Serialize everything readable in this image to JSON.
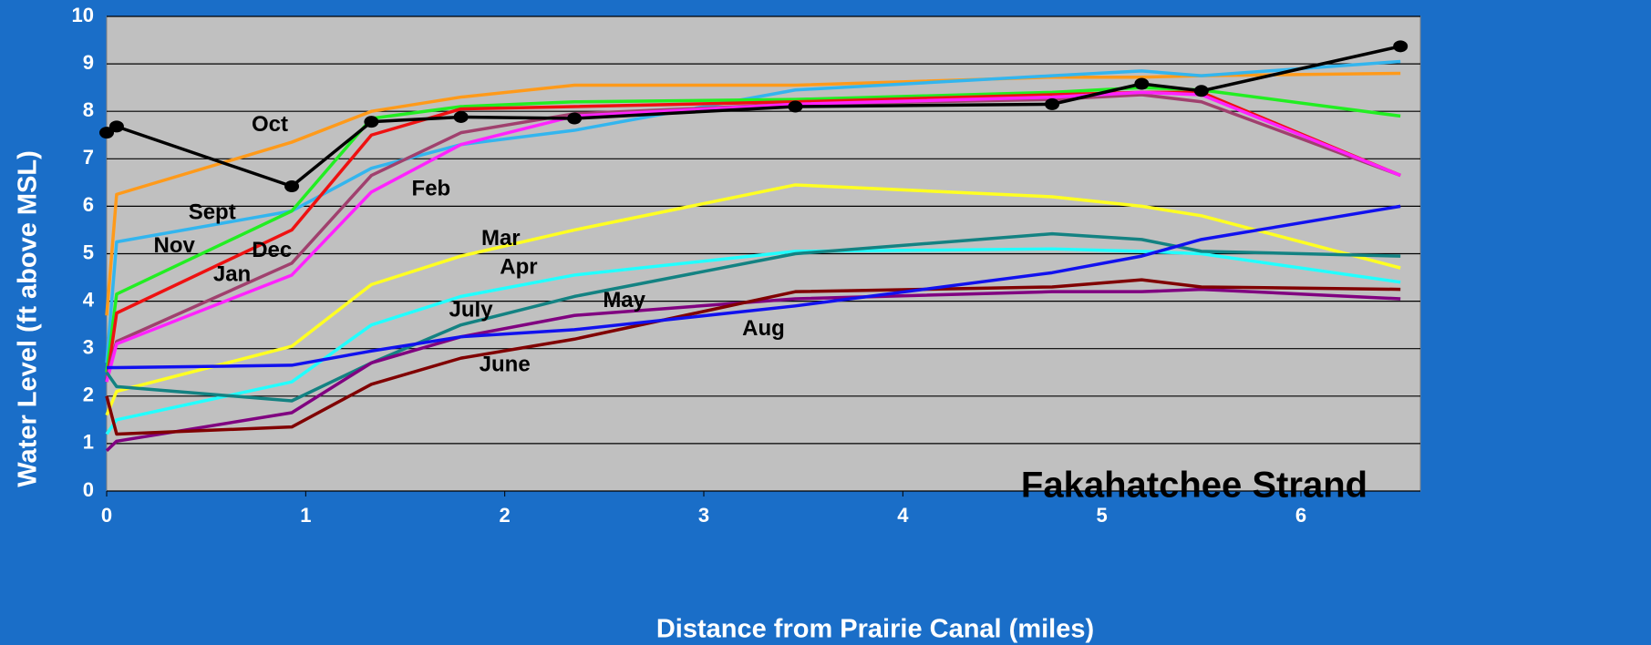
{
  "chart_data": {
    "type": "line",
    "annotation": "Fakahatchee Strand",
    "xlabel": "Distance from Prairie Canal (miles)",
    "ylabel": "Water Level (ft above MSL)",
    "x": [
      0,
      0.05,
      0.93,
      1.33,
      1.78,
      2.35,
      3.46,
      4.75,
      5.2,
      5.5,
      6.5
    ],
    "xlim": [
      0,
      6.6
    ],
    "xticks": [
      0,
      1,
      2,
      3,
      4,
      5,
      6
    ],
    "ylim": [
      0,
      10
    ],
    "yticks": [
      0,
      1,
      2,
      3,
      4,
      5,
      6,
      7,
      8,
      9,
      10
    ],
    "grid": true,
    "series": [
      {
        "name": "Oct",
        "color": "#ff9a1a",
        "values": [
          3.7,
          6.25,
          7.35,
          8.0,
          8.3,
          8.55,
          8.55,
          8.72,
          8.72,
          8.75,
          8.8
        ]
      },
      {
        "name": "Sept",
        "color": "#33b5ee",
        "values": [
          2.7,
          5.25,
          5.9,
          6.8,
          7.3,
          7.6,
          8.45,
          8.75,
          8.85,
          8.75,
          9.05
        ]
      },
      {
        "name": "Nov",
        "color": "#22ee22",
        "values": [
          2.5,
          4.15,
          5.9,
          7.85,
          8.1,
          8.2,
          8.25,
          8.4,
          8.5,
          8.45,
          7.9
        ]
      },
      {
        "name": "Dec",
        "color": "#ee1111",
        "values": [
          2.3,
          3.75,
          5.5,
          7.5,
          8.05,
          8.1,
          8.2,
          8.35,
          8.4,
          8.4,
          6.65
        ]
      },
      {
        "name": "Jan",
        "color": "#a0406e",
        "values": [
          2.4,
          3.15,
          4.8,
          6.65,
          7.55,
          7.95,
          8.15,
          8.25,
          8.35,
          8.2,
          6.65
        ]
      },
      {
        "name": "Feb",
        "color": "#ff22ff",
        "values": [
          2.3,
          3.1,
          4.55,
          6.3,
          7.3,
          7.9,
          8.15,
          8.3,
          8.4,
          8.35,
          6.65
        ]
      },
      {
        "name": "Mar",
        "color": "#ffff22",
        "values": [
          1.6,
          2.1,
          3.05,
          4.35,
          4.95,
          5.5,
          6.45,
          6.2,
          6.0,
          5.8,
          4.7
        ]
      },
      {
        "name": "Apr",
        "color": "#22ffff",
        "values": [
          1.2,
          1.5,
          2.3,
          3.5,
          4.1,
          4.55,
          5.05,
          5.1,
          5.05,
          5.0,
          4.4
        ]
      },
      {
        "name": "July",
        "color": "#138282",
        "values": [
          2.5,
          2.2,
          1.9,
          2.7,
          3.5,
          4.1,
          5.0,
          5.42,
          5.3,
          5.05,
          4.95
        ]
      },
      {
        "name": "May",
        "color": "#800080",
        "values": [
          0.85,
          1.05,
          1.65,
          2.7,
          3.25,
          3.7,
          4.05,
          4.2,
          4.2,
          4.25,
          4.05
        ]
      },
      {
        "name": "June",
        "color": "#800000",
        "values": [
          2.0,
          1.2,
          1.35,
          2.25,
          2.8,
          3.2,
          4.2,
          4.3,
          4.45,
          4.3,
          4.25
        ]
      },
      {
        "name": "Aug",
        "color": "#1111ee",
        "values": [
          2.6,
          2.6,
          2.65,
          2.95,
          3.25,
          3.4,
          3.9,
          4.6,
          4.95,
          5.3,
          6.0
        ]
      },
      {
        "color": "#000000",
        "markers": true,
        "values": [
          7.55,
          7.68,
          6.42,
          7.78,
          7.88,
          7.85,
          8.1,
          8.15,
          8.58,
          8.43,
          9.37
        ]
      }
    ]
  }
}
